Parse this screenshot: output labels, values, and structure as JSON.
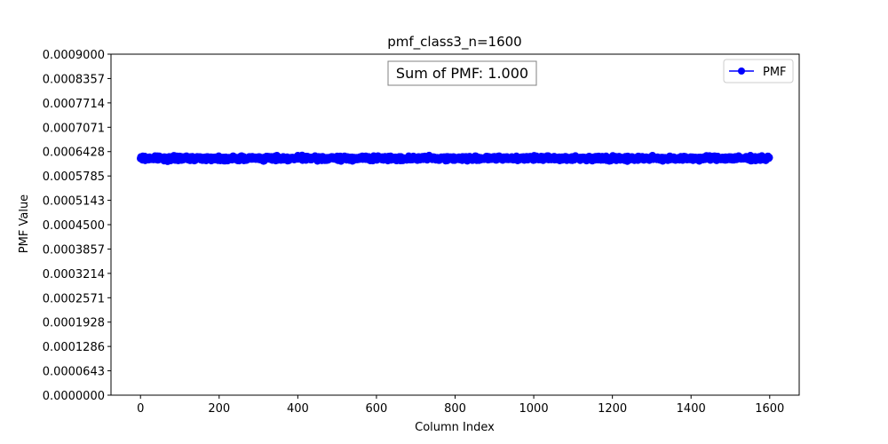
{
  "chart_data": {
    "type": "line",
    "title": "pmf_class3_n=1600",
    "xlabel": "Column Index",
    "ylabel": "PMF Value",
    "xlim": [
      -75,
      1675
    ],
    "ylim": [
      0,
      0.0009
    ],
    "xticks": [
      0,
      200,
      400,
      600,
      800,
      1000,
      1200,
      1400,
      1600
    ],
    "xtick_labels": [
      "0",
      "200",
      "400",
      "600",
      "800",
      "1000",
      "1200",
      "1400",
      "1600"
    ],
    "yticks": [
      0,
      6.43e-05,
      0.0001286,
      0.0001928,
      0.0002571,
      0.0003214,
      0.0003857,
      0.00045,
      0.0005143,
      0.0005785,
      0.0006428,
      0.0007071,
      0.0007714,
      0.0008357,
      0.0009
    ],
    "ytick_labels": [
      "0.0000000",
      "0.0000643",
      "0.0001286",
      "0.0001928",
      "0.0002571",
      "0.0003214",
      "0.0003857",
      "0.0004500",
      "0.0005143",
      "0.0005785",
      "0.0006428",
      "0.0007071",
      "0.0007714",
      "0.0008357",
      "0.0009000"
    ],
    "annotation": "Sum of PMF: 1.000",
    "legend_position": "top-right",
    "grid": false,
    "series": [
      {
        "name": "PMF",
        "color": "#0000ff",
        "marker": "circle",
        "n_points": 1600,
        "x_range": [
          0,
          1599
        ],
        "mean": 0.000625,
        "approx_min": 0.000608,
        "approx_max": 0.000641
      }
    ]
  }
}
